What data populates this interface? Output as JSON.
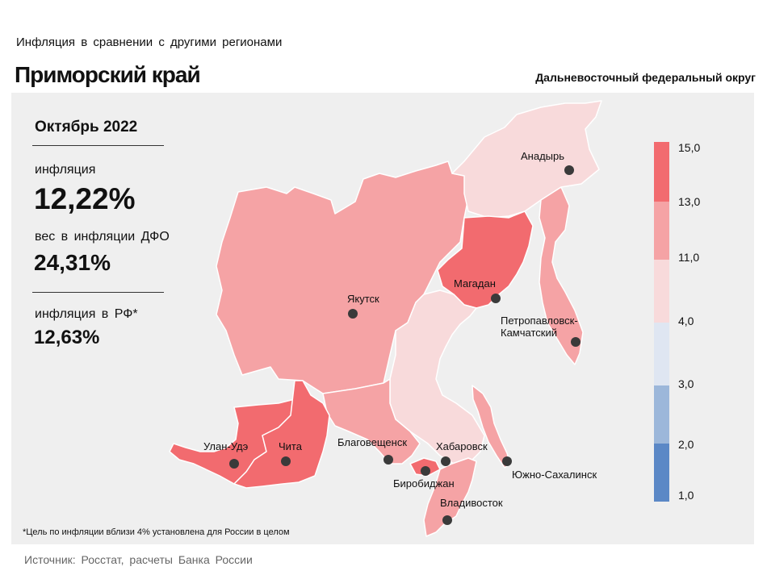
{
  "header": {
    "subtitle": "Инфляция в сравнении с другими регионами",
    "title": "Приморский край",
    "district": "Дальневосточный федеральный округ"
  },
  "stats": {
    "period": "Октябрь 2022",
    "inflation_label": "инфляция",
    "inflation_value": "12,22%",
    "weight_label": "вес в инфляции ДФО",
    "weight_value": "24,31%",
    "rf_label": "инфляция в РФ*",
    "rf_value": "12,63%"
  },
  "footnote": "*Цель по инфляции вблизи 4% установлена для России в целом",
  "source": "Источник: Росстат, расчеты Банка России",
  "legend": {
    "labels": [
      "15,0",
      "13,0",
      "11,0",
      "4,0",
      "3,0",
      "2,0",
      "1,0"
    ],
    "colors": [
      "#f26b6f",
      "#f5a3a5",
      "#f8dadb",
      "#dfe6f2",
      "#9cb7da",
      "#5b88c6"
    ]
  },
  "map": {
    "colors": {
      "dark_red": "#f26b6f",
      "mid_red": "#f5a3a5",
      "light_pink": "#f8dadb",
      "border": "#ffffff",
      "dot": "#3a3a3a"
    },
    "cities": {
      "anadyr": "Анадырь",
      "yakutsk": "Якутск",
      "magadan": "Магадан",
      "petropavlovsk_1": "Петропавловск-",
      "petropavlovsk_2": "Камчатский",
      "ulan_ude": "Улан-Удэ",
      "chita": "Чита",
      "blagoveshchensk": "Благовещенск",
      "khabarovsk": "Хабаровск",
      "yuzhno_sakhalinsk": "Южно-Сахалинск",
      "birobidzhan": "Биробиджан",
      "vladivostok": "Владивосток"
    }
  }
}
